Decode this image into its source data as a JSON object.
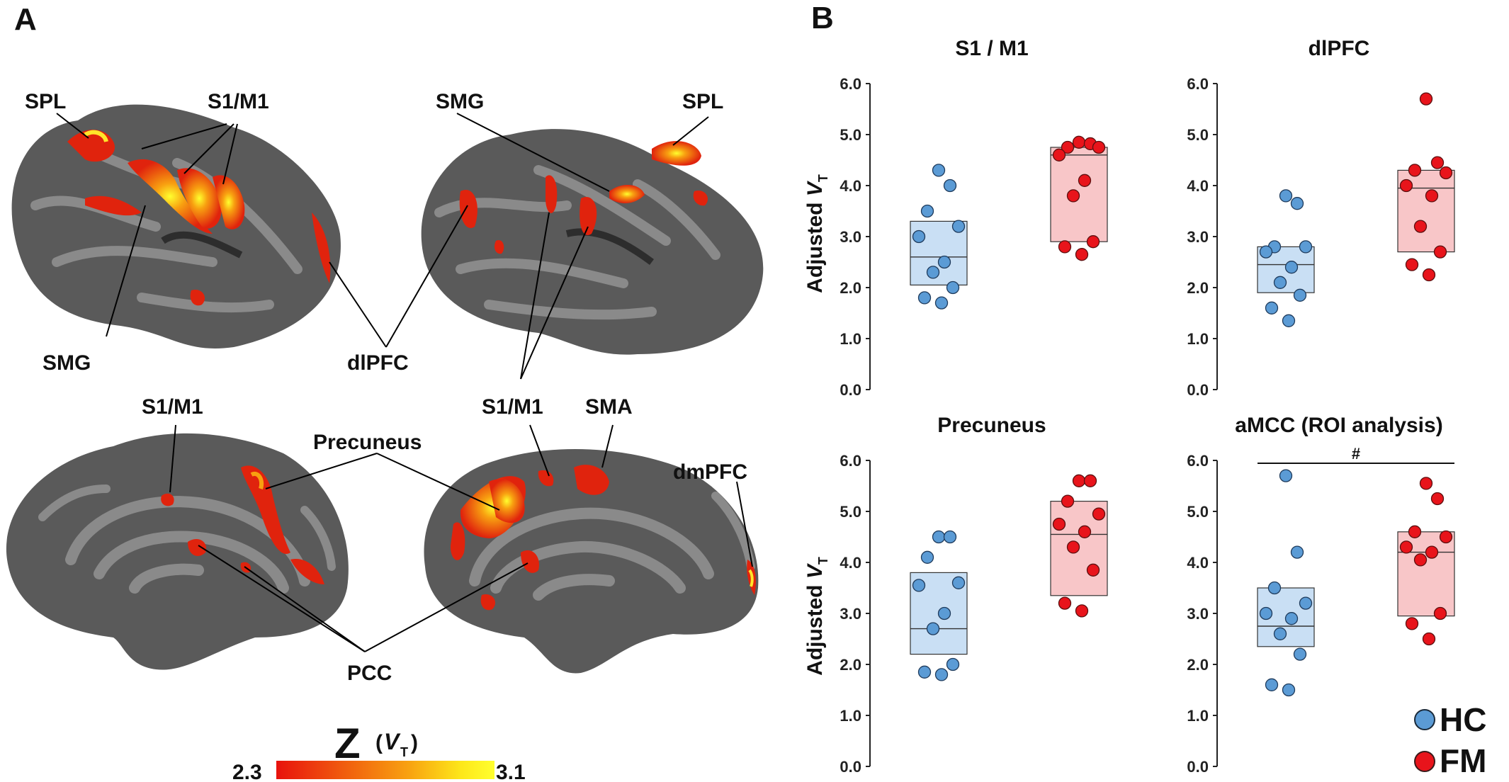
{
  "panel_a": {
    "letter": "A",
    "labels": {
      "spl_left": "SPL",
      "s1m1_left_top": "S1/M1",
      "smg_right_top": "SMG",
      "spl_right": "SPL",
      "smg_left_bottom": "SMG",
      "dlpfc": "dlPFC",
      "s1m1_right_mid": "S1/M1",
      "s1m1_medial_left": "S1/M1",
      "precuneus": "Precuneus",
      "sma": "SMA",
      "dmpfc": "dmPFC",
      "pcc": "PCC"
    },
    "colorbar": {
      "title_main": "Z",
      "title_open": "(",
      "title_v": "V",
      "title_sub": "T",
      "title_close": ")",
      "min_label": "2.3",
      "max_label": "3.1",
      "gradient": [
        "#e8120d",
        "#f05a0e",
        "#f8a010",
        "#fde81a",
        "#ffff2e"
      ]
    },
    "colors": {
      "brain_dark": "#5a5a5a",
      "brain_light": "#8a8a8a",
      "activation_red": "#e0230d",
      "activation_orange": "#f27a12",
      "activation_yellow": "#ffe52a"
    }
  },
  "panel_b": {
    "letter": "B",
    "ylabel_prefix": "Adjusted ",
    "ylabel_v": "V",
    "ylabel_sub": "T",
    "legend": {
      "hc_label": "HC",
      "fm_label": "FM",
      "hc_color": "#5b9bd5",
      "fm_color": "#e8141b"
    }
  },
  "chart_data": [
    {
      "type": "scatter",
      "title": "S1 / M1",
      "ylim": [
        0,
        6
      ],
      "yticks": [
        "0.0",
        "1.0",
        "2.0",
        "3.0",
        "4.0",
        "5.0",
        "6.0"
      ],
      "annotation": "",
      "series": [
        {
          "name": "HC",
          "values": [
            4.3,
            4.0,
            3.5,
            3.2,
            3.0,
            2.5,
            2.3,
            2.0,
            1.8,
            1.7
          ],
          "box": {
            "q1": 2.05,
            "median": 2.6,
            "q3": 3.3
          }
        },
        {
          "name": "FM",
          "values": [
            4.85,
            4.82,
            4.75,
            4.75,
            4.6,
            4.1,
            3.8,
            2.9,
            2.8,
            2.65
          ],
          "box": {
            "q1": 2.9,
            "median": 4.6,
            "q3": 4.75
          }
        }
      ]
    },
    {
      "type": "scatter",
      "title": "dlPFC",
      "ylim": [
        0,
        6
      ],
      "yticks": [
        "0.0",
        "1.0",
        "2.0",
        "3.0",
        "4.0",
        "5.0",
        "6.0"
      ],
      "annotation": "",
      "series": [
        {
          "name": "HC",
          "values": [
            3.8,
            3.65,
            2.8,
            2.8,
            2.7,
            2.4,
            2.1,
            1.85,
            1.6,
            1.35
          ],
          "box": {
            "q1": 1.9,
            "median": 2.45,
            "q3": 2.8
          }
        },
        {
          "name": "FM",
          "values": [
            5.7,
            4.45,
            4.3,
            4.25,
            4.0,
            3.8,
            3.2,
            2.7,
            2.45,
            2.25
          ],
          "box": {
            "q1": 2.7,
            "median": 3.95,
            "q3": 4.3
          }
        }
      ]
    },
    {
      "type": "scatter",
      "title": "Precuneus",
      "ylim": [
        0,
        6
      ],
      "yticks": [
        "0.0",
        "1.0",
        "2.0",
        "3.0",
        "4.0",
        "5.0",
        "6.0"
      ],
      "annotation": "",
      "series": [
        {
          "name": "HC",
          "values": [
            4.5,
            4.5,
            4.1,
            3.6,
            3.55,
            3.0,
            2.7,
            2.0,
            1.85,
            1.8
          ],
          "box": {
            "q1": 2.2,
            "median": 2.7,
            "q3": 3.8
          }
        },
        {
          "name": "FM",
          "values": [
            5.6,
            5.6,
            5.2,
            4.95,
            4.75,
            4.6,
            4.3,
            3.85,
            3.2,
            3.05
          ],
          "box": {
            "q1": 3.35,
            "median": 4.55,
            "q3": 5.2
          }
        }
      ]
    },
    {
      "type": "scatter",
      "title": "aMCC (ROI analysis)",
      "ylim": [
        0,
        6
      ],
      "yticks": [
        "0.0",
        "1.0",
        "2.0",
        "3.0",
        "4.0",
        "5.0",
        "6.0"
      ],
      "annotation": "#",
      "series": [
        {
          "name": "HC",
          "values": [
            5.7,
            4.2,
            3.5,
            3.2,
            3.0,
            2.9,
            2.6,
            2.2,
            1.6,
            1.5
          ],
          "box": {
            "q1": 2.35,
            "median": 2.75,
            "q3": 3.5
          }
        },
        {
          "name": "FM",
          "values": [
            5.55,
            5.25,
            4.6,
            4.5,
            4.3,
            4.2,
            4.05,
            3.0,
            2.8,
            2.5
          ],
          "box": {
            "q1": 2.95,
            "median": 4.2,
            "q3": 4.6
          }
        }
      ]
    }
  ]
}
